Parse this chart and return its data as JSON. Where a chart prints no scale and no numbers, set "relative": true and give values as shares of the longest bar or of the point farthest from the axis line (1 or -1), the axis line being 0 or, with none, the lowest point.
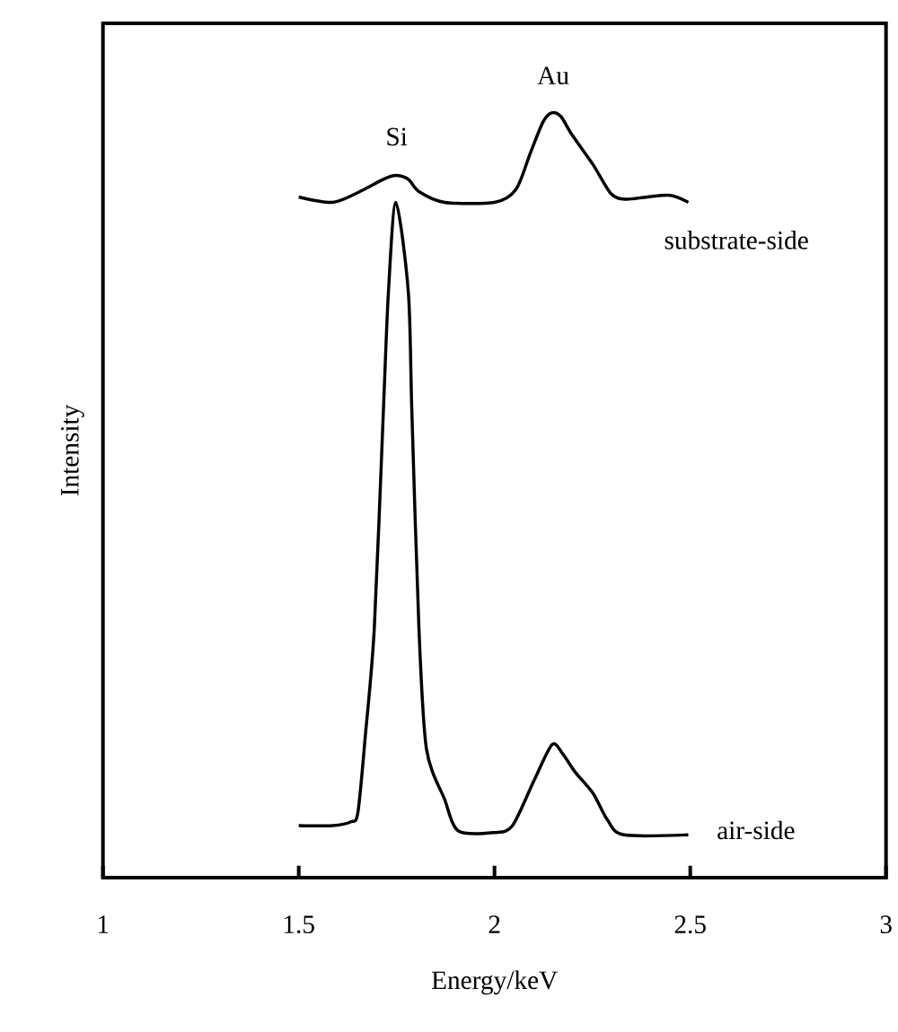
{
  "chart_data": {
    "type": "line",
    "xlabel": "Energy/keV",
    "ylabel": "Intensity",
    "relative": true,
    "xlim": [
      1,
      3
    ],
    "xticks": [
      1,
      1.5,
      2,
      2.5,
      3
    ],
    "grid": false,
    "marker": "none",
    "line_style": "solid",
    "annotations": [
      {
        "text": "Si",
        "x": 1.75,
        "y": 0.92
      },
      {
        "text": "Au",
        "x": 2.15,
        "y": 1.0
      }
    ],
    "series": [
      {
        "name": "substrate-side",
        "color": "#000000",
        "x": [
          1.5,
          1.587,
          1.656,
          1.716,
          1.748,
          1.78,
          1.807,
          1.872,
          2.0,
          2.055,
          2.092,
          2.124,
          2.147,
          2.17,
          2.197,
          2.252,
          2.298,
          2.335,
          2.39,
          2.45,
          2.495
        ],
        "values": [
          0.89,
          0.883,
          0.897,
          0.913,
          0.918,
          0.913,
          0.897,
          0.883,
          0.883,
          0.9,
          0.948,
          0.988,
          1.0,
          0.995,
          0.972,
          0.932,
          0.894,
          0.887,
          0.89,
          0.892,
          0.883
        ]
      },
      {
        "name": "air-side",
        "color": "#000000",
        "x": [
          1.5,
          1.587,
          1.633,
          1.651,
          1.67,
          1.693,
          1.716,
          1.729,
          1.748,
          1.78,
          1.789,
          1.807,
          1.826,
          1.872,
          1.908,
          2.0,
          2.046,
          2.101,
          2.147,
          2.174,
          2.206,
          2.252,
          2.289,
          2.33,
          2.495
        ],
        "values": [
          0.068,
          0.068,
          0.073,
          0.085,
          0.185,
          0.326,
          0.608,
          0.765,
          0.883,
          0.765,
          0.608,
          0.326,
          0.169,
          0.103,
          0.061,
          0.059,
          0.068,
          0.127,
          0.174,
          0.162,
          0.138,
          0.11,
          0.075,
          0.056,
          0.056
        ]
      }
    ]
  }
}
